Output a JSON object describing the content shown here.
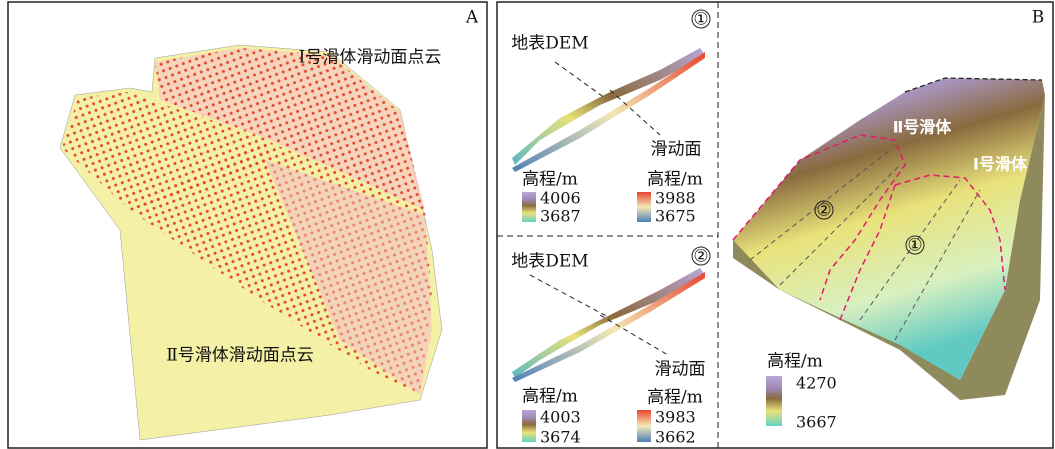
{
  "panel_a": {
    "label": "A",
    "top_label": "Ⅰ号滑体滑动面点云",
    "bottom_label": "Ⅱ号滑体滑动面点云"
  },
  "panel_b": {
    "label": "B",
    "profile_1": {
      "marker": "①",
      "surface_label": "地表DEM",
      "sliding_label": "滑动面",
      "surface_legend": {
        "title": "高程/m",
        "max": 4006,
        "min": 3687
      },
      "sliding_legend": {
        "title": "高程/m",
        "max": 3988,
        "min": 3675
      }
    },
    "profile_2": {
      "marker": "②",
      "surface_label": "地表DEM",
      "sliding_label": "滑动面",
      "surface_legend": {
        "title": "高程/m",
        "max": 4003,
        "min": 3674
      },
      "sliding_legend": {
        "title": "高程/m",
        "max": 3983,
        "min": 3662
      }
    },
    "map": {
      "slide_2_label": "Ⅱ号滑体",
      "slide_1_label": "Ⅰ号滑体",
      "profile_2_marker": "②",
      "profile_1_marker": "①",
      "legend": {
        "title": "高程/m",
        "max": 4270,
        "min": 3667
      }
    }
  }
}
